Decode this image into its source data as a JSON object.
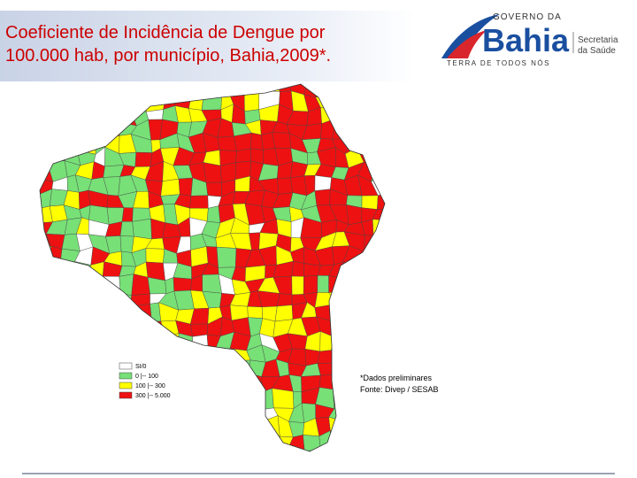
{
  "header": {
    "title_lines": [
      "Coeficiente de Incidência de Dengue por",
      "100.000 hab, por município, Bahia,2009*."
    ]
  },
  "logo": {
    "governo": "GOVERNO DA",
    "estado": "Bahia",
    "secretaria_lines": [
      "Secretaria",
      "da Saúde"
    ],
    "slogan": "TERRA DE TODOS NÓS"
  },
  "legend": {
    "items": [
      "SI/0",
      "0 |-- 100",
      "100 |-- 300",
      "300 |-- 5.000"
    ]
  },
  "notes": [
    "*Dados preliminares",
    "Fonte: Divep / SESAB"
  ]
}
